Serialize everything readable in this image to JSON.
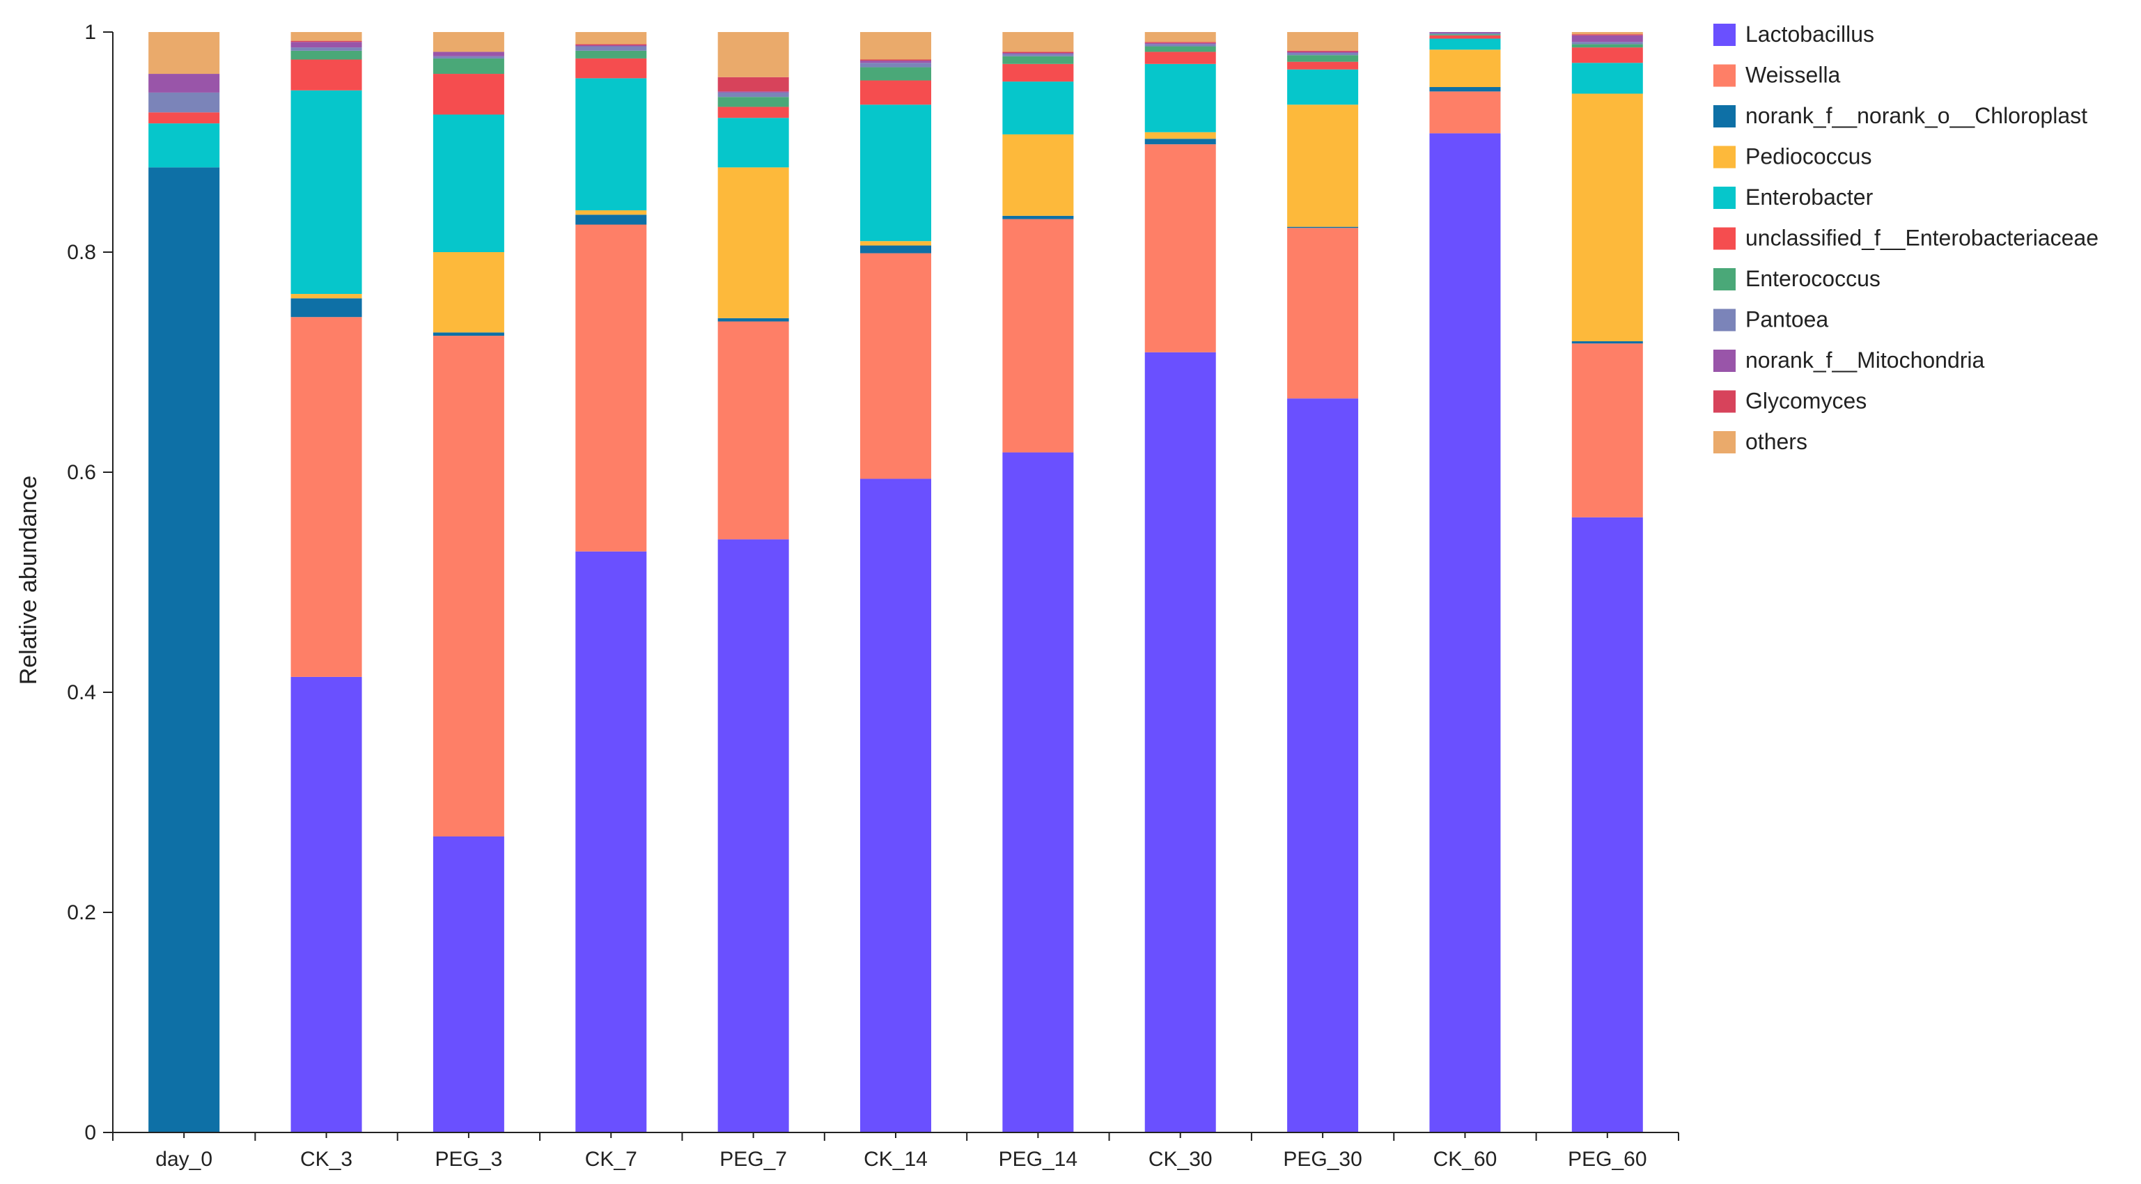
{
  "chart_data": {
    "type": "bar",
    "stacked": true,
    "title": "",
    "xlabel": "",
    "ylabel": "Relative abundance",
    "ylim": [
      0,
      1
    ],
    "yticks": [
      "0",
      "0.2",
      "0.4",
      "0.6",
      "0.8",
      "1"
    ],
    "ytick_values": [
      0,
      0.2,
      0.4,
      0.6,
      0.8,
      1
    ],
    "legend_position": "right",
    "categories": [
      "day_0",
      "CK_3",
      "PEG_3",
      "CK_7",
      "PEG_7",
      "CK_14",
      "PEG_14",
      "CK_30",
      "PEG_30",
      "CK_60",
      "PEG_60"
    ],
    "series": [
      {
        "name": "Lactobacillus",
        "color": "#6a50ff",
        "values": [
          0,
          0.414,
          0.269,
          0.528,
          0.539,
          0.594,
          0.618,
          0.709,
          0.667,
          0.908,
          0.559
        ]
      },
      {
        "name": "Weissella",
        "color": "#fe7f67",
        "values": [
          0,
          0.327,
          0.455,
          0.297,
          0.198,
          0.205,
          0.212,
          0.189,
          0.155,
          0.038,
          0.158
        ]
      },
      {
        "name": "norank_f__norank_o__Chloroplast",
        "color": "#0e70a6",
        "values": [
          0.877,
          0.017,
          0.003,
          0.009,
          0.003,
          0.007,
          0.003,
          0.005,
          0.001,
          0.004,
          0.002
        ]
      },
      {
        "name": "Pediococcus",
        "color": "#fdb93b",
        "values": [
          0,
          0.004,
          0.073,
          0.004,
          0.137,
          0.004,
          0.074,
          0.006,
          0.111,
          0.034,
          0.225
        ]
      },
      {
        "name": "Enterobacter",
        "color": "#06c6cb",
        "values": [
          0.04,
          0.185,
          0.125,
          0.12,
          0.045,
          0.124,
          0.048,
          0.062,
          0.032,
          0.01,
          0.028
        ]
      },
      {
        "name": "unclassified_f__Enterobacteriaceae",
        "color": "#f54d4f",
        "values": [
          0.01,
          0.028,
          0.037,
          0.018,
          0.01,
          0.022,
          0.016,
          0.011,
          0.007,
          0.003,
          0.014
        ]
      },
      {
        "name": "Enterococcus",
        "color": "#4aa878",
        "values": [
          0,
          0.008,
          0.014,
          0.007,
          0.009,
          0.012,
          0.007,
          0.005,
          0.006,
          0.001,
          0.003
        ]
      },
      {
        "name": "Pantoea",
        "color": "#7b84b9",
        "values": [
          0.018,
          0.003,
          0.002,
          0.004,
          0.004,
          0.004,
          0.002,
          0.002,
          0.002,
          0.001,
          0.002
        ]
      },
      {
        "name": "norank_f__Mitochondria",
        "color": "#9955a9",
        "values": [
          0.017,
          0.005,
          0.004,
          0.001,
          0.001,
          0.002,
          0.001,
          0.001,
          0.001,
          0.001,
          0.006
        ]
      },
      {
        "name": "Glycomyces",
        "color": "#d7435b",
        "values": [
          0,
          0.001,
          0,
          0.001,
          0.013,
          0.001,
          0.001,
          0.001,
          0.001,
          0,
          0.001
        ]
      },
      {
        "name": "others",
        "color": "#eaaa6b",
        "values": [
          0.038,
          0.008,
          0.018,
          0.011,
          0.041,
          0.025,
          0.018,
          0.009,
          0.017,
          0.0,
          0.002
        ]
      }
    ]
  }
}
